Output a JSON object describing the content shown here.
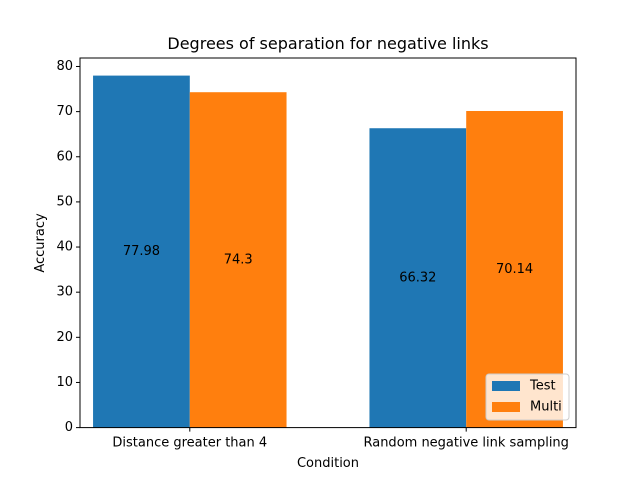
{
  "chart_data": {
    "type": "bar",
    "title": "Degrees of separation for negative links",
    "xlabel": "Condition",
    "ylabel": "Accuracy",
    "categories": [
      "Distance greater than 4",
      "Random negative link sampling"
    ],
    "series": [
      {
        "name": "Test",
        "color": "#1f77b4",
        "values": [
          77.98,
          66.32
        ],
        "labels": [
          "77.98",
          "66.32"
        ]
      },
      {
        "name": "Multi",
        "color": "#ff7f0e",
        "values": [
          74.3,
          70.14
        ],
        "labels": [
          "74.3",
          "70.14"
        ]
      }
    ],
    "ylim": [
      0,
      81.879
    ],
    "yticks": [
      0,
      10,
      20,
      30,
      40,
      50,
      60,
      70,
      80
    ],
    "grid": false,
    "legend_position": "lower-right"
  }
}
